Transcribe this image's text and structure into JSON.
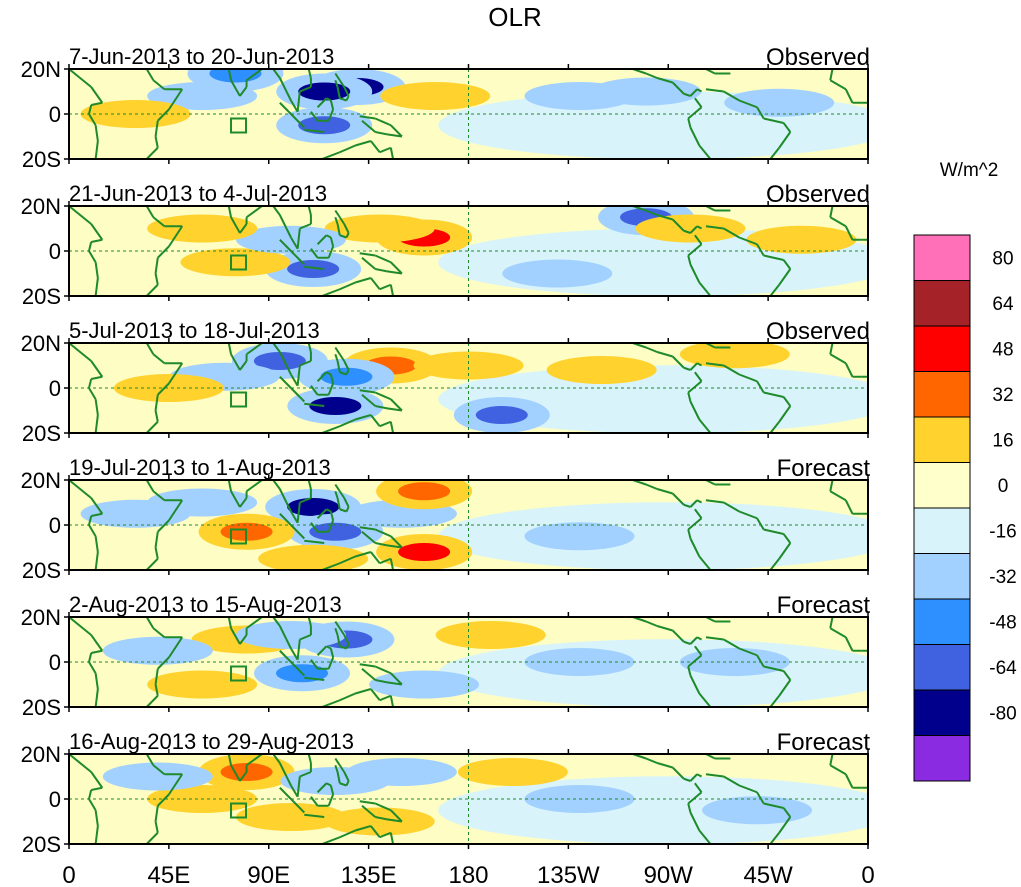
{
  "chart_data": {
    "type": "heatmap",
    "title": "OLR",
    "units_label": "W/m^2",
    "x_tick_labels": [
      "0",
      "45E",
      "90E",
      "135E",
      "180",
      "135W",
      "90W",
      "45W",
      "0"
    ],
    "x_ticks_deg": [
      0,
      45,
      90,
      135,
      180,
      225,
      270,
      315,
      360
    ],
    "xlim": [
      0,
      360
    ],
    "y_tick_labels": [
      "20N",
      "0",
      "20S"
    ],
    "y_ticks_deg": [
      20,
      0,
      -20
    ],
    "ylim": [
      -20,
      20
    ],
    "dashed_reference_lines": {
      "equator": 0,
      "dateline": 180
    },
    "panels": [
      {
        "period": "7-Jun-2013 to 20-Jun-2013",
        "kind": "Observed",
        "anomalies": [
          {
            "lon": 130,
            "lat": 12,
            "value": -64
          },
          {
            "lon": 115,
            "lat": 10,
            "value": -64
          },
          {
            "lon": 75,
            "lat": 18,
            "value": -32
          },
          {
            "lon": 115,
            "lat": -5,
            "value": -48
          },
          {
            "lon": 60,
            "lat": 8,
            "value": -16
          },
          {
            "lon": 230,
            "lat": 8,
            "value": -16
          },
          {
            "lon": 260,
            "lat": 10,
            "value": -16
          },
          {
            "lon": 30,
            "lat": 0,
            "value": 16
          },
          {
            "lon": 165,
            "lat": 8,
            "value": 16
          },
          {
            "lon": 320,
            "lat": 5,
            "value": -16
          }
        ]
      },
      {
        "period": "21-Jun-2013 to 4-Jul-2013",
        "kind": "Observed",
        "anomalies": [
          {
            "lon": 160,
            "lat": 6,
            "value": 48
          },
          {
            "lon": 140,
            "lat": 10,
            "value": 16
          },
          {
            "lon": 110,
            "lat": -8,
            "value": -48
          },
          {
            "lon": 260,
            "lat": 15,
            "value": -48
          },
          {
            "lon": 280,
            "lat": 10,
            "value": 16
          },
          {
            "lon": 75,
            "lat": -5,
            "value": 16
          },
          {
            "lon": 100,
            "lat": 5,
            "value": -16
          },
          {
            "lon": 60,
            "lat": 10,
            "value": 16
          },
          {
            "lon": 330,
            "lat": 5,
            "value": 16
          },
          {
            "lon": 220,
            "lat": -10,
            "value": -16
          }
        ]
      },
      {
        "period": "5-Jul-2013 to 18-Jul-2013",
        "kind": "Observed",
        "anomalies": [
          {
            "lon": 120,
            "lat": -8,
            "value": -64
          },
          {
            "lon": 95,
            "lat": 12,
            "value": -48
          },
          {
            "lon": 145,
            "lat": 10,
            "value": 32
          },
          {
            "lon": 195,
            "lat": -12,
            "value": -48
          },
          {
            "lon": 180,
            "lat": 10,
            "value": 16
          },
          {
            "lon": 125,
            "lat": 5,
            "value": -32
          },
          {
            "lon": 70,
            "lat": 5,
            "value": -16
          },
          {
            "lon": 45,
            "lat": 0,
            "value": 16
          },
          {
            "lon": 240,
            "lat": 8,
            "value": 16
          },
          {
            "lon": 300,
            "lat": 15,
            "value": 16
          }
        ]
      },
      {
        "period": "19-Jul-2013 to 1-Aug-2013",
        "kind": "Forecast",
        "anomalies": [
          {
            "lon": 110,
            "lat": 8,
            "value": -64
          },
          {
            "lon": 120,
            "lat": -3,
            "value": -48
          },
          {
            "lon": 160,
            "lat": -12,
            "value": 48
          },
          {
            "lon": 80,
            "lat": -3,
            "value": 32
          },
          {
            "lon": 60,
            "lat": 10,
            "value": -16
          },
          {
            "lon": 150,
            "lat": 5,
            "value": -16
          },
          {
            "lon": 110,
            "lat": -15,
            "value": 16
          },
          {
            "lon": 30,
            "lat": 5,
            "value": -16
          },
          {
            "lon": 230,
            "lat": -5,
            "value": -16
          },
          {
            "lon": 160,
            "lat": 15,
            "value": 32
          }
        ]
      },
      {
        "period": "2-Aug-2013 to 15-Aug-2013",
        "kind": "Forecast",
        "anomalies": [
          {
            "lon": 125,
            "lat": 10,
            "value": -48
          },
          {
            "lon": 80,
            "lat": 10,
            "value": 16
          },
          {
            "lon": 105,
            "lat": -5,
            "value": -32
          },
          {
            "lon": 100,
            "lat": 12,
            "value": -16
          },
          {
            "lon": 40,
            "lat": 5,
            "value": -16
          },
          {
            "lon": 160,
            "lat": -10,
            "value": -16
          },
          {
            "lon": 230,
            "lat": 0,
            "value": -16
          },
          {
            "lon": 300,
            "lat": 0,
            "value": -16
          },
          {
            "lon": 190,
            "lat": 12,
            "value": 16
          },
          {
            "lon": 60,
            "lat": -10,
            "value": 16
          }
        ]
      },
      {
        "period": "16-Aug-2013 to 29-Aug-2013",
        "kind": "Forecast",
        "anomalies": [
          {
            "lon": 80,
            "lat": 12,
            "value": 32
          },
          {
            "lon": 120,
            "lat": 8,
            "value": -16
          },
          {
            "lon": 60,
            "lat": 0,
            "value": 16
          },
          {
            "lon": 140,
            "lat": -10,
            "value": 16
          },
          {
            "lon": 150,
            "lat": 12,
            "value": -16
          },
          {
            "lon": 230,
            "lat": 0,
            "value": -16
          },
          {
            "lon": 310,
            "lat": -5,
            "value": -16
          },
          {
            "lon": 40,
            "lat": 10,
            "value": -16
          },
          {
            "lon": 200,
            "lat": 12,
            "value": 16
          },
          {
            "lon": 100,
            "lat": -8,
            "value": 16
          }
        ]
      }
    ],
    "colorbar": {
      "tick_labels": [
        "80",
        "64",
        "48",
        "32",
        "16",
        "0",
        "-16",
        "-32",
        "-48",
        "-64",
        "-80"
      ],
      "colors": [
        "#ff70b8",
        "#a52228",
        "#ff0000",
        "#ff6600",
        "#ffd22e",
        "#ffffcc",
        "#d8f4fa",
        "#a3d1ff",
        "#2e8fff",
        "#4062e0",
        "#00008c",
        "#8a2be2"
      ]
    },
    "background_color": "#fdfdc4"
  }
}
